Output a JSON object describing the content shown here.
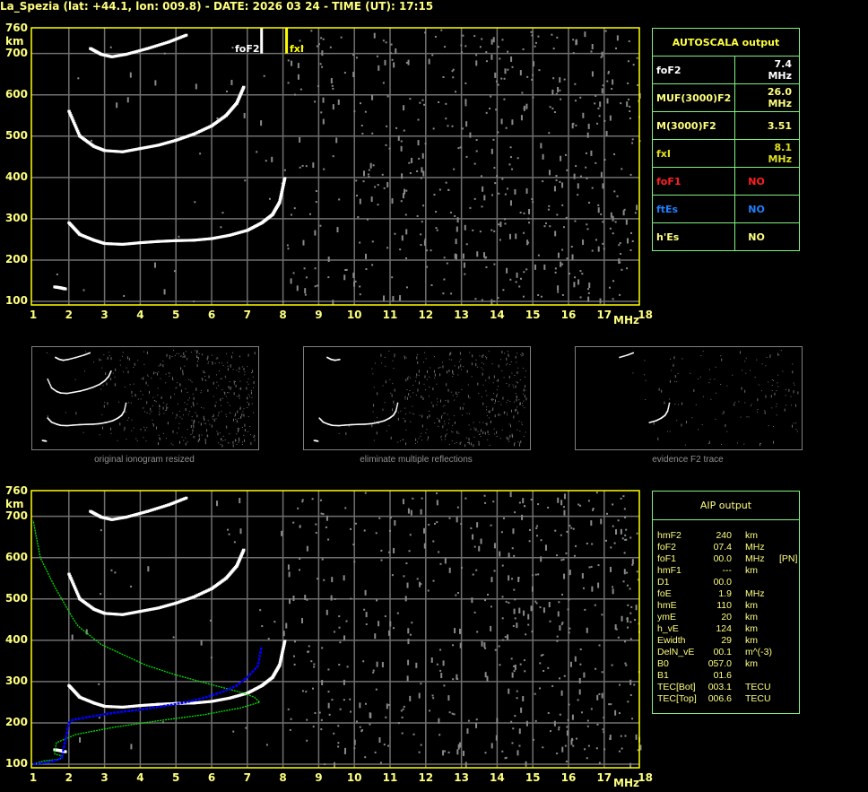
{
  "title": "La_Spezia (lat: +44.1, lon: 009.8) - DATE: 2026 03 24 - TIME (UT): 17:15",
  "colors": {
    "axis": "#ffff00",
    "grid": "#707070",
    "trace": "#ffffff",
    "noise": "#8a8a8a",
    "table_border": "#80f080",
    "profile_green": "#00e000",
    "profile_blue": "#0000ff"
  },
  "autoscala": {
    "header": "AUTOSCALA output",
    "rows": [
      {
        "label": "foF2",
        "value": "7.4 MHz",
        "color": "#ffffff"
      },
      {
        "label": "MUF(3000)F2",
        "value": "26.0 MHz",
        "color": "#ffff80"
      },
      {
        "label": "M(3000)F2",
        "value": "3.51",
        "color": "#ffff80"
      },
      {
        "label": "fxI",
        "value": "8.1 MHz",
        "color": "#e0e020"
      },
      {
        "label": "foF1",
        "value": "NO",
        "color": "#ff2020"
      },
      {
        "label": "ftEs",
        "value": "NO",
        "color": "#2080ff"
      },
      {
        "label": "h'Es",
        "value": "NO",
        "color": "#ffff80"
      }
    ]
  },
  "aip": {
    "header": "AIP output",
    "rows": [
      {
        "name": "hmF2",
        "value": "240",
        "unit": "km",
        "extra": ""
      },
      {
        "name": "foF2",
        "value": "07.4",
        "unit": "MHz",
        "extra": ""
      },
      {
        "name": "foF1",
        "value": "00.0",
        "unit": "MHz",
        "extra": "[PN]"
      },
      {
        "name": "hmF1",
        "value": "---",
        "unit": "km",
        "extra": ""
      },
      {
        "name": "D1",
        "value": "00.0",
        "unit": "",
        "extra": ""
      },
      {
        "name": "foE",
        "value": "1.9",
        "unit": "MHz",
        "extra": ""
      },
      {
        "name": "hmE",
        "value": "110",
        "unit": "km",
        "extra": ""
      },
      {
        "name": "ymE",
        "value": "20",
        "unit": "km",
        "extra": ""
      },
      {
        "name": "h_vE",
        "value": "124",
        "unit": "km",
        "extra": ""
      },
      {
        "name": "Ewidth",
        "value": "29",
        "unit": "km",
        "extra": ""
      },
      {
        "name": "DelN_vE",
        "value": "00.1",
        "unit": "m^(-3)",
        "extra": ""
      },
      {
        "name": "B0",
        "value": "057.0",
        "unit": "km",
        "extra": ""
      },
      {
        "name": "B1",
        "value": "01.6",
        "unit": "",
        "extra": ""
      },
      {
        "name": "TEC[Bot]",
        "value": "003.1",
        "unit": "TECU",
        "extra": ""
      },
      {
        "name": "TEC[Top]",
        "value": "006.6",
        "unit": "TECU",
        "extra": ""
      }
    ]
  },
  "thumbnails": [
    {
      "caption": "original ionogram resized"
    },
    {
      "caption": "eliminate multiple reflections"
    },
    {
      "caption": "evidence F2 trace"
    }
  ],
  "chart_data": [
    {
      "type": "scatter",
      "title": "",
      "xlabel": "MHz",
      "ylabel": "km",
      "xlim": [
        1,
        18
      ],
      "ylim": [
        100,
        760
      ],
      "xticks": [
        "1",
        "2",
        "3",
        "4",
        "5",
        "6",
        "7",
        "8",
        "9",
        "10",
        "11",
        "12",
        "13",
        "14",
        "15",
        "16",
        "17",
        "18"
      ],
      "yticks": [
        "100",
        "200",
        "300",
        "400",
        "500",
        "600",
        "700",
        "760"
      ],
      "grid": true,
      "markers": [
        {
          "label": "foF2",
          "x": 7.4,
          "color": "#ffffff"
        },
        {
          "label": "fxI",
          "x": 8.1,
          "color": "#ffff00"
        }
      ],
      "traces": [
        {
          "x": [
            2.0,
            2.3,
            2.7,
            3.0,
            3.5,
            4.0,
            4.5,
            5.0,
            5.5,
            6.0,
            6.5,
            7.0,
            7.4,
            7.7,
            7.9,
            8.05
          ],
          "y": [
            290,
            262,
            248,
            240,
            238,
            242,
            245,
            247,
            248,
            252,
            260,
            272,
            290,
            310,
            340,
            400
          ]
        },
        {
          "x": [
            2.0,
            2.3,
            2.7,
            3.0,
            3.5,
            4.0,
            4.5,
            5.0,
            5.5,
            6.0,
            6.4,
            6.7,
            6.9
          ],
          "y": [
            560,
            500,
            475,
            465,
            462,
            470,
            478,
            490,
            505,
            525,
            550,
            580,
            620
          ]
        },
        {
          "x": [
            2.6,
            2.9,
            3.2,
            3.6,
            4.2,
            4.8,
            5.3
          ],
          "y": [
            712,
            698,
            692,
            698,
            712,
            728,
            745
          ]
        },
        {
          "x": [
            1.6,
            1.75,
            1.9
          ],
          "y": [
            135,
            133,
            130
          ]
        }
      ]
    },
    {
      "type": "scatter",
      "title": "",
      "xlabel": "MHz",
      "ylabel": "km",
      "xlim": [
        1,
        18
      ],
      "ylim": [
        100,
        760
      ],
      "xticks": [
        "1",
        "2",
        "3",
        "4",
        "5",
        "6",
        "7",
        "8",
        "9",
        "10",
        "11",
        "12",
        "13",
        "14",
        "15",
        "16",
        "17",
        "18"
      ],
      "yticks": [
        "100",
        "200",
        "300",
        "400",
        "500",
        "600",
        "700",
        "760"
      ],
      "grid": true,
      "traces": [
        {
          "x": [
            2.0,
            2.3,
            2.7,
            3.0,
            3.5,
            4.0,
            4.5,
            5.0,
            5.5,
            6.0,
            6.5,
            7.0,
            7.4,
            7.7,
            7.9,
            8.05
          ],
          "y": [
            290,
            262,
            248,
            240,
            238,
            242,
            245,
            247,
            248,
            252,
            260,
            272,
            290,
            310,
            340,
            400
          ]
        },
        {
          "x": [
            2.0,
            2.3,
            2.7,
            3.0,
            3.5,
            4.0,
            4.5,
            5.0,
            5.5,
            6.0,
            6.4,
            6.7,
            6.9
          ],
          "y": [
            560,
            500,
            475,
            465,
            462,
            470,
            478,
            490,
            505,
            525,
            550,
            580,
            620
          ]
        },
        {
          "x": [
            2.6,
            2.9,
            3.2,
            3.6,
            4.2,
            4.8,
            5.3
          ],
          "y": [
            712,
            698,
            692,
            698,
            712,
            728,
            745
          ]
        },
        {
          "x": [
            1.6,
            1.75,
            1.9
          ],
          "y": [
            135,
            133,
            130
          ]
        }
      ],
      "profiles": [
        {
          "color": "#00e000",
          "x": [
            1.0,
            1.3,
            1.75,
            1.8,
            1.6,
            1.65,
            2.2,
            3.3,
            4.5,
            5.8,
            6.8,
            7.35,
            7.2,
            6.9,
            5.85,
            5.0,
            4.15,
            2.9,
            2.25,
            2.1,
            1.6,
            1.2,
            1.0
          ],
          "y": [
            100,
            108,
            112,
            120,
            125,
            152,
            172,
            190,
            205,
            220,
            236,
            250,
            262,
            272,
            296,
            316,
            340,
            390,
            435,
            455,
            530,
            600,
            690
          ]
        },
        {
          "color": "#0000ff",
          "x": [
            1.0,
            1.3,
            1.6,
            1.8,
            2.0,
            2.1,
            2.6,
            3.3,
            4.0,
            4.6,
            5.3,
            5.85,
            6.3,
            6.7,
            7.0,
            7.3,
            7.4
          ],
          "y": [
            100,
            103,
            108,
            115,
            200,
            207,
            215,
            225,
            232,
            240,
            250,
            262,
            275,
            290,
            310,
            338,
            385
          ]
        }
      ]
    }
  ]
}
